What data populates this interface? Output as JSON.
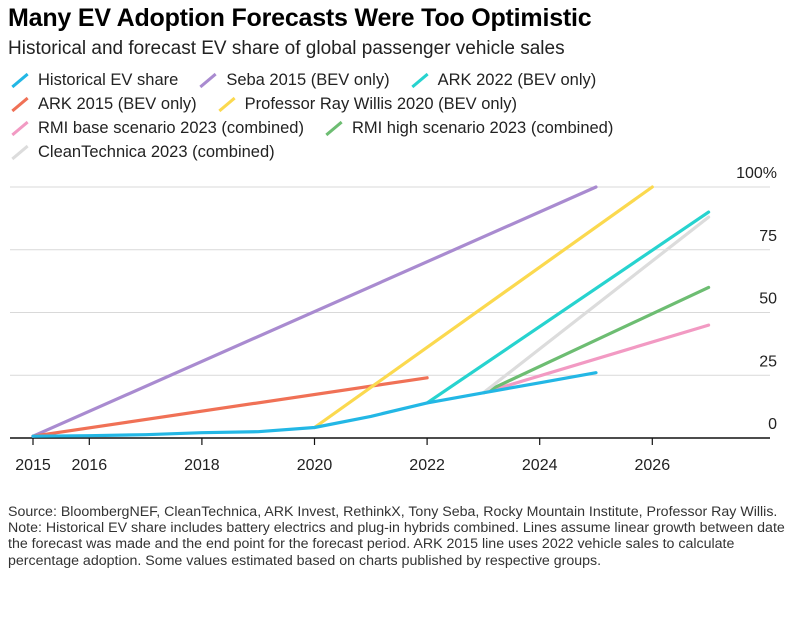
{
  "header": {
    "title": "Many EV Adoption Forecasts Were Too Optimistic",
    "subtitle": "Historical and forecast EV share of global passenger vehicle sales"
  },
  "footer": {
    "source": "Source: BloombergNEF, CleanTechnica, ARK Invest, RethinkX, Tony Seba, Rocky Mountain Institute, Professor Ray Willis.",
    "note": "Note: Historical EV share includes battery electrics and plug-in hybrids combined. Lines assume linear growth between date the forecast was made and the end point for the forecast period. ARK 2015 line uses 2022 vehicle sales to calculate percentage adoption. Some values estimated based on charts published by respective groups."
  },
  "chart_data": {
    "type": "line",
    "title": "Many EV Adoption Forecasts Were Too Optimistic",
    "subtitle": "Historical and forecast EV share of global passenger vehicle sales",
    "xlabel": "",
    "ylabel": "",
    "xlim": [
      2015,
      2027.2
    ],
    "ylim": [
      0,
      100
    ],
    "x_ticks": [
      2015,
      2016,
      2018,
      2020,
      2022,
      2024,
      2026
    ],
    "y_ticks": [
      0,
      25,
      50,
      75,
      100
    ],
    "y_tick_labels": [
      "0",
      "25",
      "50",
      "75",
      "100%"
    ],
    "y_axis_position": "right",
    "grid": "horizontal",
    "legend_placement": "top",
    "series": [
      {
        "name": "Historical EV share",
        "color": "#23b7e5",
        "points": [
          [
            2015,
            0.7
          ],
          [
            2016,
            0.9
          ],
          [
            2017,
            1.3
          ],
          [
            2018,
            2.1
          ],
          [
            2019,
            2.5
          ],
          [
            2020,
            4.2
          ],
          [
            2021,
            8.6
          ],
          [
            2022,
            14
          ],
          [
            2023,
            18
          ],
          [
            2024,
            22
          ],
          [
            2025,
            26
          ]
        ]
      },
      {
        "name": "Seba 2015 (BEV only)",
        "color": "#a98bd0",
        "points": [
          [
            2015,
            0.7
          ],
          [
            2025,
            100
          ]
        ]
      },
      {
        "name": "ARK 2022 (BEV only)",
        "color": "#27d3cf",
        "points": [
          [
            2022,
            14
          ],
          [
            2027,
            90
          ]
        ]
      },
      {
        "name": "ARK 2015 (BEV only)",
        "color": "#f07156",
        "points": [
          [
            2015,
            0.7
          ],
          [
            2022,
            24
          ]
        ]
      },
      {
        "name": "Professor Ray Willis 2020 (BEV only)",
        "color": "#fbd94f",
        "points": [
          [
            2020,
            4.2
          ],
          [
            2026,
            100
          ]
        ]
      },
      {
        "name": "RMI base scenario 2023 (combined)",
        "color": "#f29ac3",
        "points": [
          [
            2023,
            18
          ],
          [
            2027,
            45
          ]
        ]
      },
      {
        "name": "RMI high scenario 2023 (combined)",
        "color": "#6dbd72",
        "points": [
          [
            2023,
            18
          ],
          [
            2027,
            60
          ]
        ]
      },
      {
        "name": "CleanTechnica 2023 (combined)",
        "color": "#dcdcdc",
        "points": [
          [
            2023,
            18
          ],
          [
            2027,
            88
          ]
        ]
      }
    ]
  }
}
